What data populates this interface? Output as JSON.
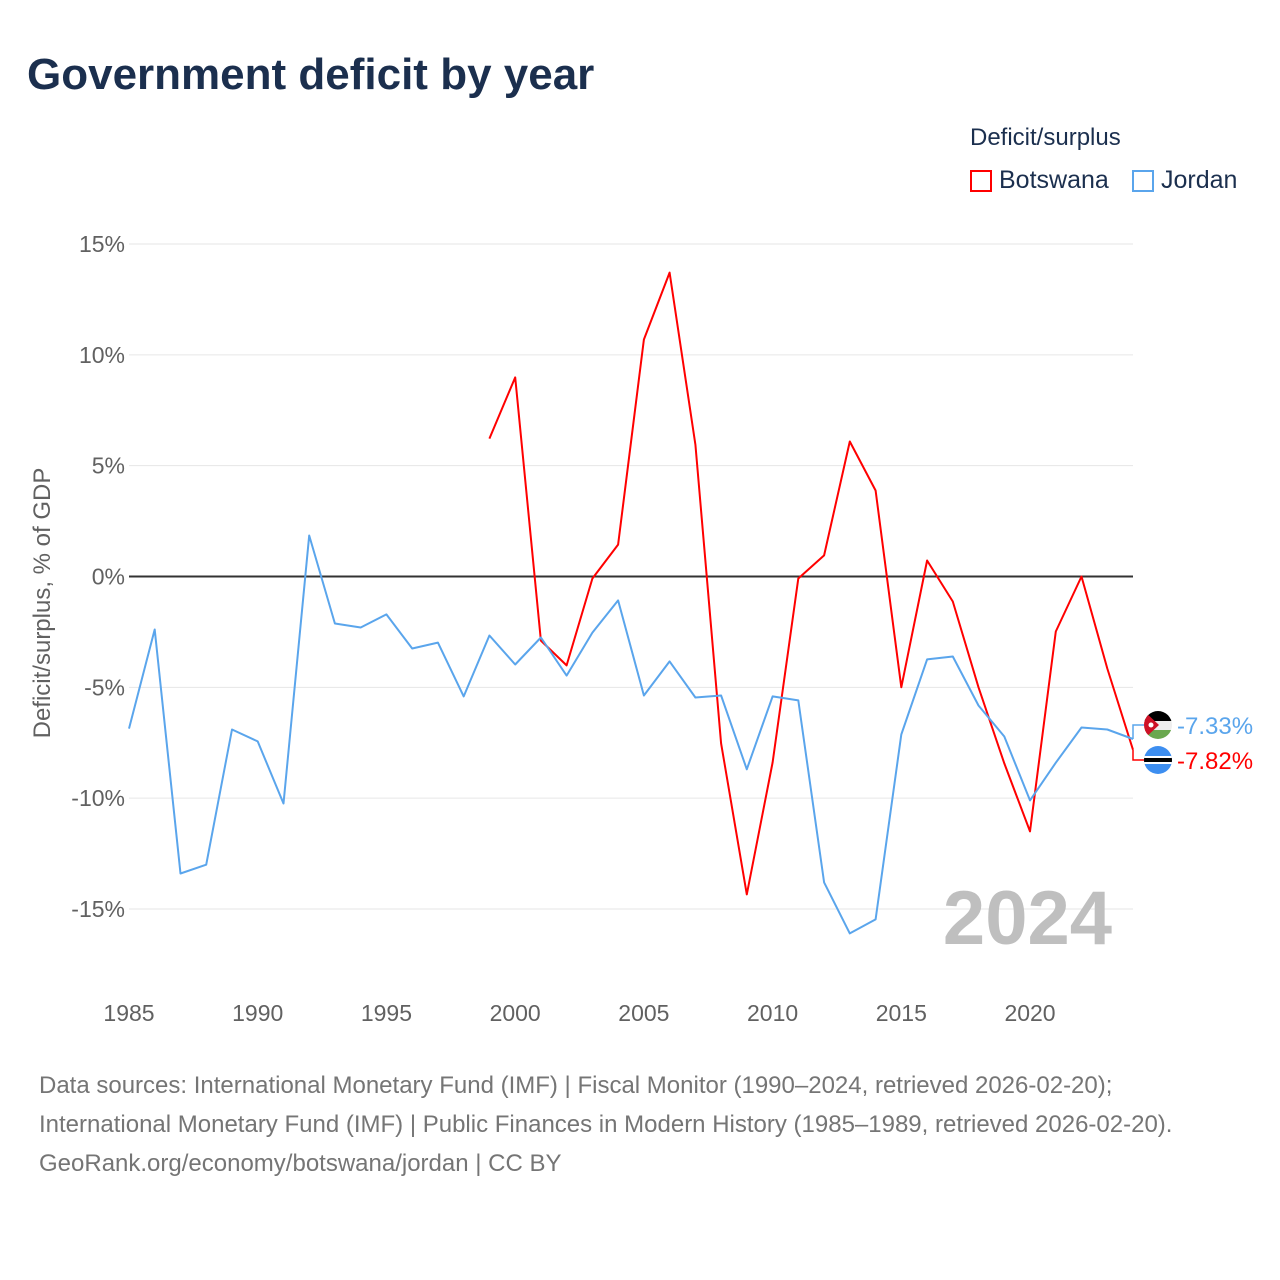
{
  "chart_data": {
    "type": "line",
    "title": "Government deficit by year",
    "ylabel": "Deficit/surplus, % of GDP",
    "xlabel": "",
    "ylim": [
      -15,
      15
    ],
    "xlim": [
      1985,
      2024
    ],
    "yticks": [
      15,
      10,
      5,
      0,
      -5,
      -10,
      -15
    ],
    "ytick_labels": [
      "15%",
      "10%",
      "5%",
      "0%",
      "-5%",
      "-10%",
      "-15%"
    ],
    "xticks": [
      1985,
      1990,
      1995,
      2000,
      2005,
      2010,
      2015,
      2020
    ],
    "xtick_labels": [
      "1985",
      "1990",
      "1995",
      "2000",
      "2005",
      "2010",
      "2015",
      "2020"
    ],
    "grid": true,
    "legend_title": "Deficit/surplus",
    "legend_position": "top-right",
    "year_watermark": "2024",
    "series": [
      {
        "name": "Botswana",
        "color": "#ff0000",
        "end_label": "-7.82%",
        "x": [
          1999,
          2000,
          2001,
          2002,
          2003,
          2004,
          2005,
          2006,
          2007,
          2008,
          2009,
          2010,
          2011,
          2012,
          2013,
          2014,
          2015,
          2016,
          2017,
          2018,
          2019,
          2020,
          2021,
          2022,
          2023,
          2024
        ],
        "values": [
          6.22,
          8.98,
          -2.89,
          -4.01,
          -0.09,
          1.44,
          10.69,
          13.71,
          5.95,
          -7.53,
          -14.34,
          -8.39,
          -0.09,
          0.95,
          6.09,
          3.88,
          -5.0,
          0.72,
          -1.13,
          -5.0,
          -8.43,
          -11.5,
          -2.48,
          0.0,
          -4.15,
          -7.82
        ]
      },
      {
        "name": "Jordan",
        "color": "#5aa5ec",
        "end_label": "-7.33%",
        "x": [
          1985,
          1986,
          1987,
          1988,
          1989,
          1990,
          1991,
          1992,
          1993,
          1994,
          1995,
          1996,
          1997,
          1998,
          1999,
          2000,
          2001,
          2002,
          2003,
          2004,
          2005,
          2006,
          2007,
          2008,
          2009,
          2010,
          2011,
          2012,
          2013,
          2014,
          2015,
          2016,
          2017,
          2018,
          2019,
          2020,
          2021,
          2022,
          2023,
          2024
        ],
        "values": [
          -6.86,
          -2.39,
          -13.4,
          -13.0,
          -6.9,
          -7.44,
          -10.24,
          1.85,
          -2.12,
          -2.3,
          -1.71,
          -3.25,
          -2.98,
          -5.41,
          -2.66,
          -3.97,
          -2.75,
          -4.47,
          -2.53,
          -1.08,
          -5.37,
          -3.83,
          -5.46,
          -5.37,
          -8.7,
          -5.41,
          -5.59,
          -13.8,
          -16.1,
          -15.47,
          -7.13,
          -3.74,
          -3.61,
          -5.82,
          -7.22,
          -10.1,
          -8.4,
          -6.81,
          -6.9,
          -7.33
        ]
      }
    ]
  },
  "footer": {
    "sources": "Data sources: International Monetary Fund (IMF) | Fiscal Monitor (1990–2024, retrieved 2026-02-20); International Monetary Fund (IMF) | Public Finances in Modern History (1985–1989, retrieved 2026-02-20).",
    "credit": "GeoRank.org/economy/botswana/jordan | CC BY"
  }
}
